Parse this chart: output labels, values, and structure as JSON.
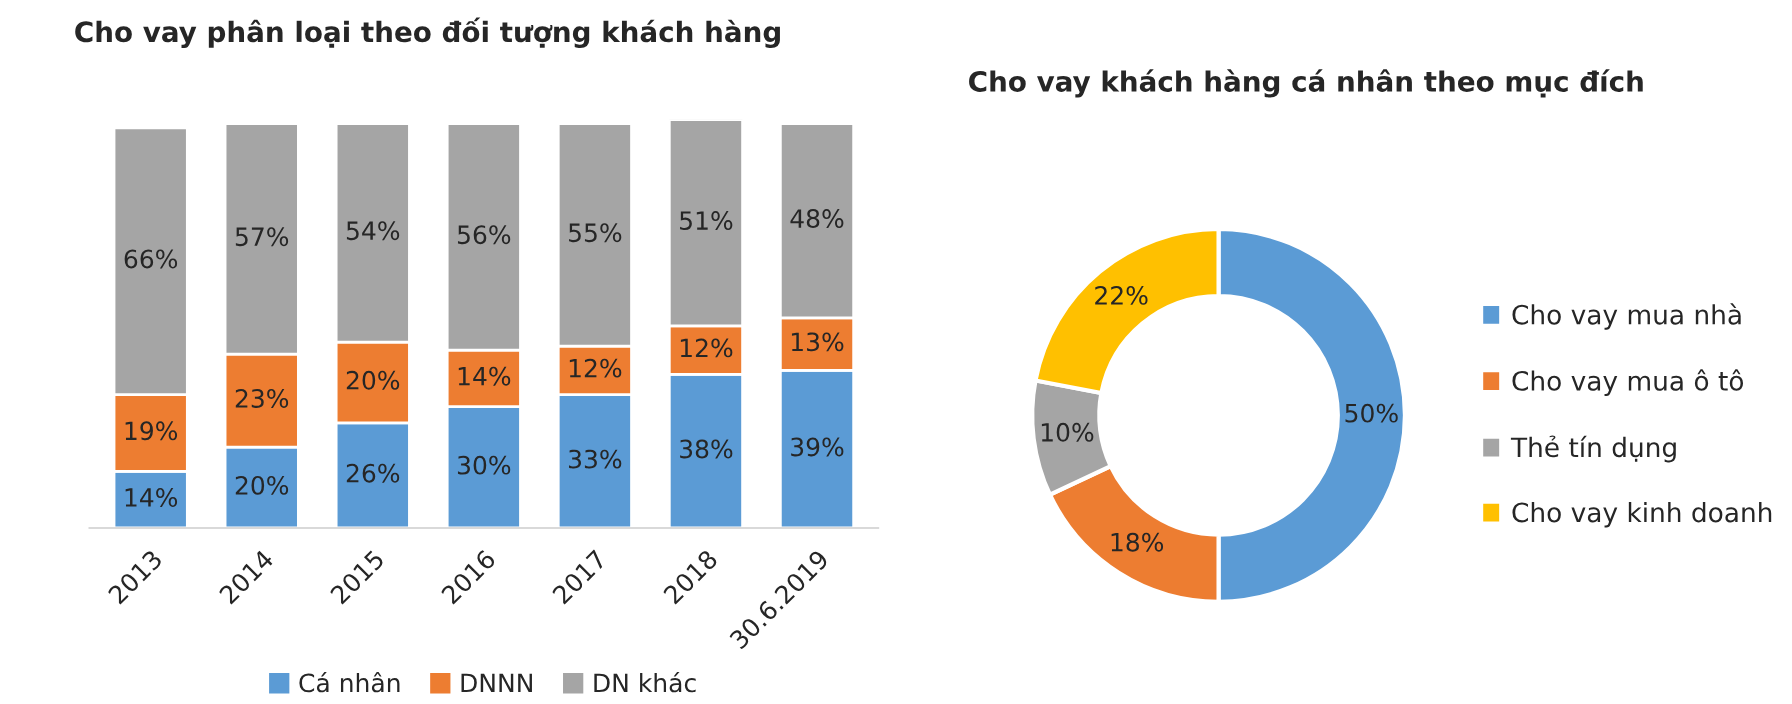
{
  "chart_data": [
    {
      "type": "bar",
      "title": "Cho vay phân loại theo đối tượng khách hàng",
      "stacked": true,
      "tick_labels": "x",
      "legend": "bottom",
      "categories": [
        "2013",
        "2014",
        "2015",
        "2016",
        "2017",
        "2018",
        "30.6.2019"
      ],
      "series": [
        {
          "name": "Cá nhân",
          "color": "#5b9bd5",
          "values": [
            14,
            20,
            26,
            30,
            33,
            38,
            39
          ],
          "value_labels": [
            "14%",
            "20%",
            "26%",
            "30%",
            "33%",
            "38%",
            "39%"
          ]
        },
        {
          "name": "DNNN",
          "color": "#ed7d31",
          "values": [
            19,
            23,
            20,
            14,
            12,
            12,
            13
          ],
          "value_labels": [
            "19%",
            "23%",
            "20%",
            "14%",
            "12%",
            "12%",
            "13%"
          ]
        },
        {
          "name": "DN khác",
          "color": "#a5a5a5",
          "values": [
            66,
            57,
            54,
            56,
            55,
            51,
            48
          ],
          "value_labels": [
            "66%",
            "57%",
            "54%",
            "56%",
            "55%",
            "51%",
            "48%"
          ]
        }
      ]
    },
    {
      "type": "donut",
      "title": "Cho vay khách hàng cá nhân theo mục đích",
      "legend": "right",
      "categories": [
        "Cho vay mua nhà",
        "Cho vay mua ô tô",
        "Thẻ tín dụng",
        "Cho vay kinh doanh"
      ],
      "values": [
        50,
        18,
        10,
        22
      ],
      "value_labels": [
        "50%",
        "18%",
        "10%",
        "22%"
      ],
      "colors": [
        "#5b9bd5",
        "#ed7d31",
        "#a5a5a5",
        "#ffc000"
      ]
    }
  ]
}
